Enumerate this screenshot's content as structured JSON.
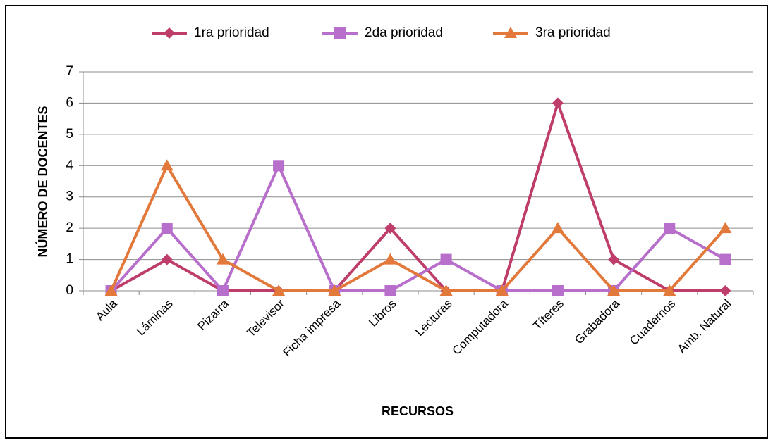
{
  "chart_data": {
    "type": "line",
    "x_label": "RECURSOS",
    "y_label": "NÚMERO DE DOCENTES",
    "categories": [
      "Aula",
      "Láminas",
      "Pizarra",
      "Televisor",
      "Ficha impresa",
      "Libros",
      "Lecturas",
      "Computadora",
      "Títeres",
      "Grabadora",
      "Cuadernos",
      "Amb. Natural"
    ],
    "series": [
      {
        "name": "1ra prioridad",
        "color": "#be3d6b",
        "marker": "diamond",
        "values": [
          0,
          1,
          0,
          0,
          0,
          2,
          0,
          0,
          6,
          1,
          0,
          0
        ]
      },
      {
        "name": "2da prioridad",
        "color": "#b76fcb",
        "marker": "square",
        "values": [
          0,
          2,
          0,
          4,
          0,
          0,
          1,
          0,
          0,
          0,
          2,
          1
        ]
      },
      {
        "name": "3ra prioridad",
        "color": "#e2783a",
        "marker": "triangle",
        "values": [
          0,
          4,
          1,
          0,
          0,
          1,
          0,
          0,
          2,
          0,
          0,
          2
        ]
      }
    ],
    "ylim": [
      0,
      7
    ],
    "yticks": [
      0,
      1,
      2,
      3,
      4,
      5,
      6,
      7
    ],
    "grid": true,
    "legend": "top"
  }
}
